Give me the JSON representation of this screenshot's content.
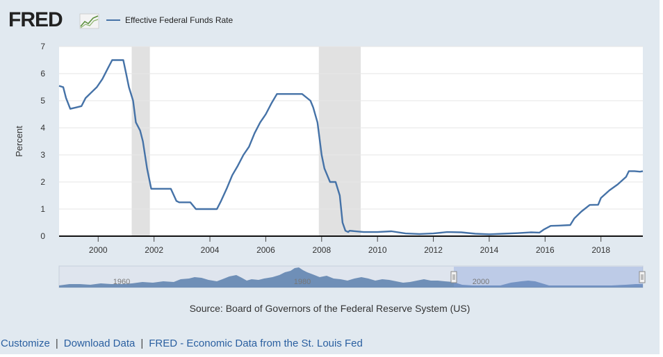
{
  "header": {
    "logo_text": "FRED",
    "logo_icon": "line-graph-icon"
  },
  "chart_data": {
    "type": "line",
    "title": "Effective Federal Funds Rate",
    "xlabel": "",
    "ylabel": "Percent",
    "xlim": [
      1998.6,
      2019.5
    ],
    "ylim": [
      0,
      7
    ],
    "x_ticks": [
      "2000",
      "2002",
      "2004",
      "2006",
      "2008",
      "2010",
      "2012",
      "2014",
      "2016",
      "2018"
    ],
    "y_ticks": [
      "0",
      "1",
      "2",
      "3",
      "4",
      "5",
      "6",
      "7"
    ],
    "grid": true,
    "legend": "top-left",
    "recessions": [
      [
        2001.2,
        2001.85
      ],
      [
        2007.9,
        2009.4
      ]
    ],
    "series": [
      {
        "name": "Effective Federal Funds Rate",
        "color": "#4572a7",
        "x": [
          1998.6,
          1998.75,
          1998.85,
          1999.0,
          1999.2,
          1999.4,
          1999.55,
          1999.75,
          1999.95,
          2000.15,
          2000.35,
          2000.5,
          2000.7,
          2000.9,
          2001.0,
          2001.1,
          2001.25,
          2001.35,
          2001.5,
          2001.6,
          2001.75,
          2001.9,
          2002.0,
          2002.3,
          2002.6,
          2002.8,
          2002.9,
          2003.0,
          2003.3,
          2003.5,
          2003.6,
          2003.8,
          2004.0,
          2004.25,
          2004.4,
          2004.6,
          2004.8,
          2005.0,
          2005.2,
          2005.4,
          2005.6,
          2005.8,
          2006.0,
          2006.2,
          2006.4,
          2006.5,
          2006.7,
          2007.0,
          2007.3,
          2007.6,
          2007.7,
          2007.85,
          2008.0,
          2008.1,
          2008.3,
          2008.5,
          2008.65,
          2008.75,
          2008.85,
          2008.95,
          2009.0,
          2009.5,
          2010.0,
          2010.5,
          2011.0,
          2011.5,
          2012.0,
          2012.5,
          2013.0,
          2013.5,
          2014.0,
          2014.5,
          2015.0,
          2015.5,
          2015.8,
          2015.95,
          2016.2,
          2016.5,
          2016.9,
          2017.05,
          2017.3,
          2017.6,
          2017.9,
          2018.0,
          2018.3,
          2018.6,
          2018.9,
          2019.0,
          2019.2,
          2019.4,
          2019.5
        ],
        "values": [
          5.55,
          5.5,
          5.1,
          4.7,
          4.75,
          4.8,
          5.1,
          5.3,
          5.5,
          5.8,
          6.2,
          6.5,
          6.5,
          6.5,
          6.0,
          5.5,
          5.0,
          4.2,
          3.9,
          3.5,
          2.5,
          1.75,
          1.75,
          1.75,
          1.75,
          1.3,
          1.25,
          1.25,
          1.25,
          1.0,
          1.0,
          1.0,
          1.0,
          1.0,
          1.3,
          1.75,
          2.25,
          2.6,
          3.0,
          3.3,
          3.8,
          4.2,
          4.5,
          4.9,
          5.25,
          5.25,
          5.25,
          5.25,
          5.25,
          5.0,
          4.75,
          4.2,
          3.0,
          2.5,
          2.0,
          2.0,
          1.5,
          0.5,
          0.2,
          0.15,
          0.2,
          0.15,
          0.15,
          0.18,
          0.1,
          0.08,
          0.1,
          0.15,
          0.14,
          0.09,
          0.07,
          0.09,
          0.11,
          0.14,
          0.13,
          0.24,
          0.38,
          0.39,
          0.41,
          0.66,
          0.91,
          1.15,
          1.16,
          1.41,
          1.69,
          1.91,
          2.19,
          2.4,
          2.4,
          2.38,
          2.4
        ]
      }
    ],
    "navigator": {
      "labels": [
        "1960",
        "1980",
        "2000"
      ],
      "selected_range": [
        1998.6,
        2019.5
      ]
    },
    "source": "Source: Board of Governors of the Federal Reserve System (US)"
  },
  "footer": {
    "customize": "Customize",
    "download": "Download Data",
    "fred_link": "FRED - Economic Data from the St. Louis Fed",
    "separator": "|"
  }
}
